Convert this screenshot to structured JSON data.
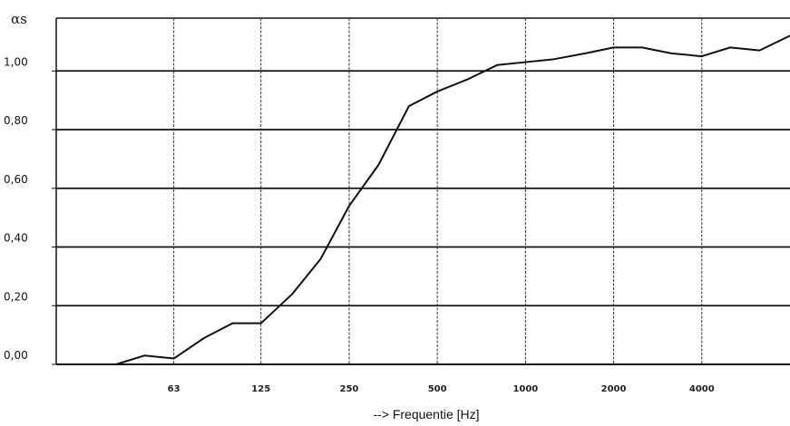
{
  "chart_data": {
    "type": "line",
    "title": "",
    "ylabel": "αs",
    "xlabel": "--> Frequentie [Hz]",
    "xscale": "log",
    "xlim": [
      25,
      8000
    ],
    "ylim": [
      0.0,
      1.18
    ],
    "grid": true,
    "legend": "none",
    "line_color": "#111111",
    "xticks": [
      {
        "value": 63,
        "label": "63"
      },
      {
        "value": 125,
        "label": "125"
      },
      {
        "value": 250,
        "label": "250"
      },
      {
        "value": 500,
        "label": "500"
      },
      {
        "value": 1000,
        "label": "1000"
      },
      {
        "value": 2000,
        "label": "2000"
      },
      {
        "value": 4000,
        "label": "4000"
      }
    ],
    "yticks": [
      {
        "value": 0.0,
        "label": "0,00"
      },
      {
        "value": 0.2,
        "label": "0,20"
      },
      {
        "value": 0.4,
        "label": "0,40"
      },
      {
        "value": 0.6,
        "label": "0,60"
      },
      {
        "value": 0.8,
        "label": "0,80"
      },
      {
        "value": 1.0,
        "label": "1,00"
      }
    ],
    "series": [
      {
        "x": [
          40,
          50,
          63,
          80,
          100,
          125,
          160,
          200,
          250,
          315,
          400,
          500,
          630,
          800,
          1000,
          1250,
          1600,
          2000,
          2500,
          3150,
          4000,
          5000,
          6300,
          8000
        ],
        "y": [
          0.0,
          0.03,
          0.02,
          0.09,
          0.14,
          0.14,
          0.24,
          0.36,
          0.54,
          0.68,
          0.88,
          0.93,
          0.97,
          1.02,
          1.03,
          1.04,
          1.06,
          1.08,
          1.08,
          1.06,
          1.05,
          1.08,
          1.07,
          1.12
        ]
      }
    ]
  }
}
